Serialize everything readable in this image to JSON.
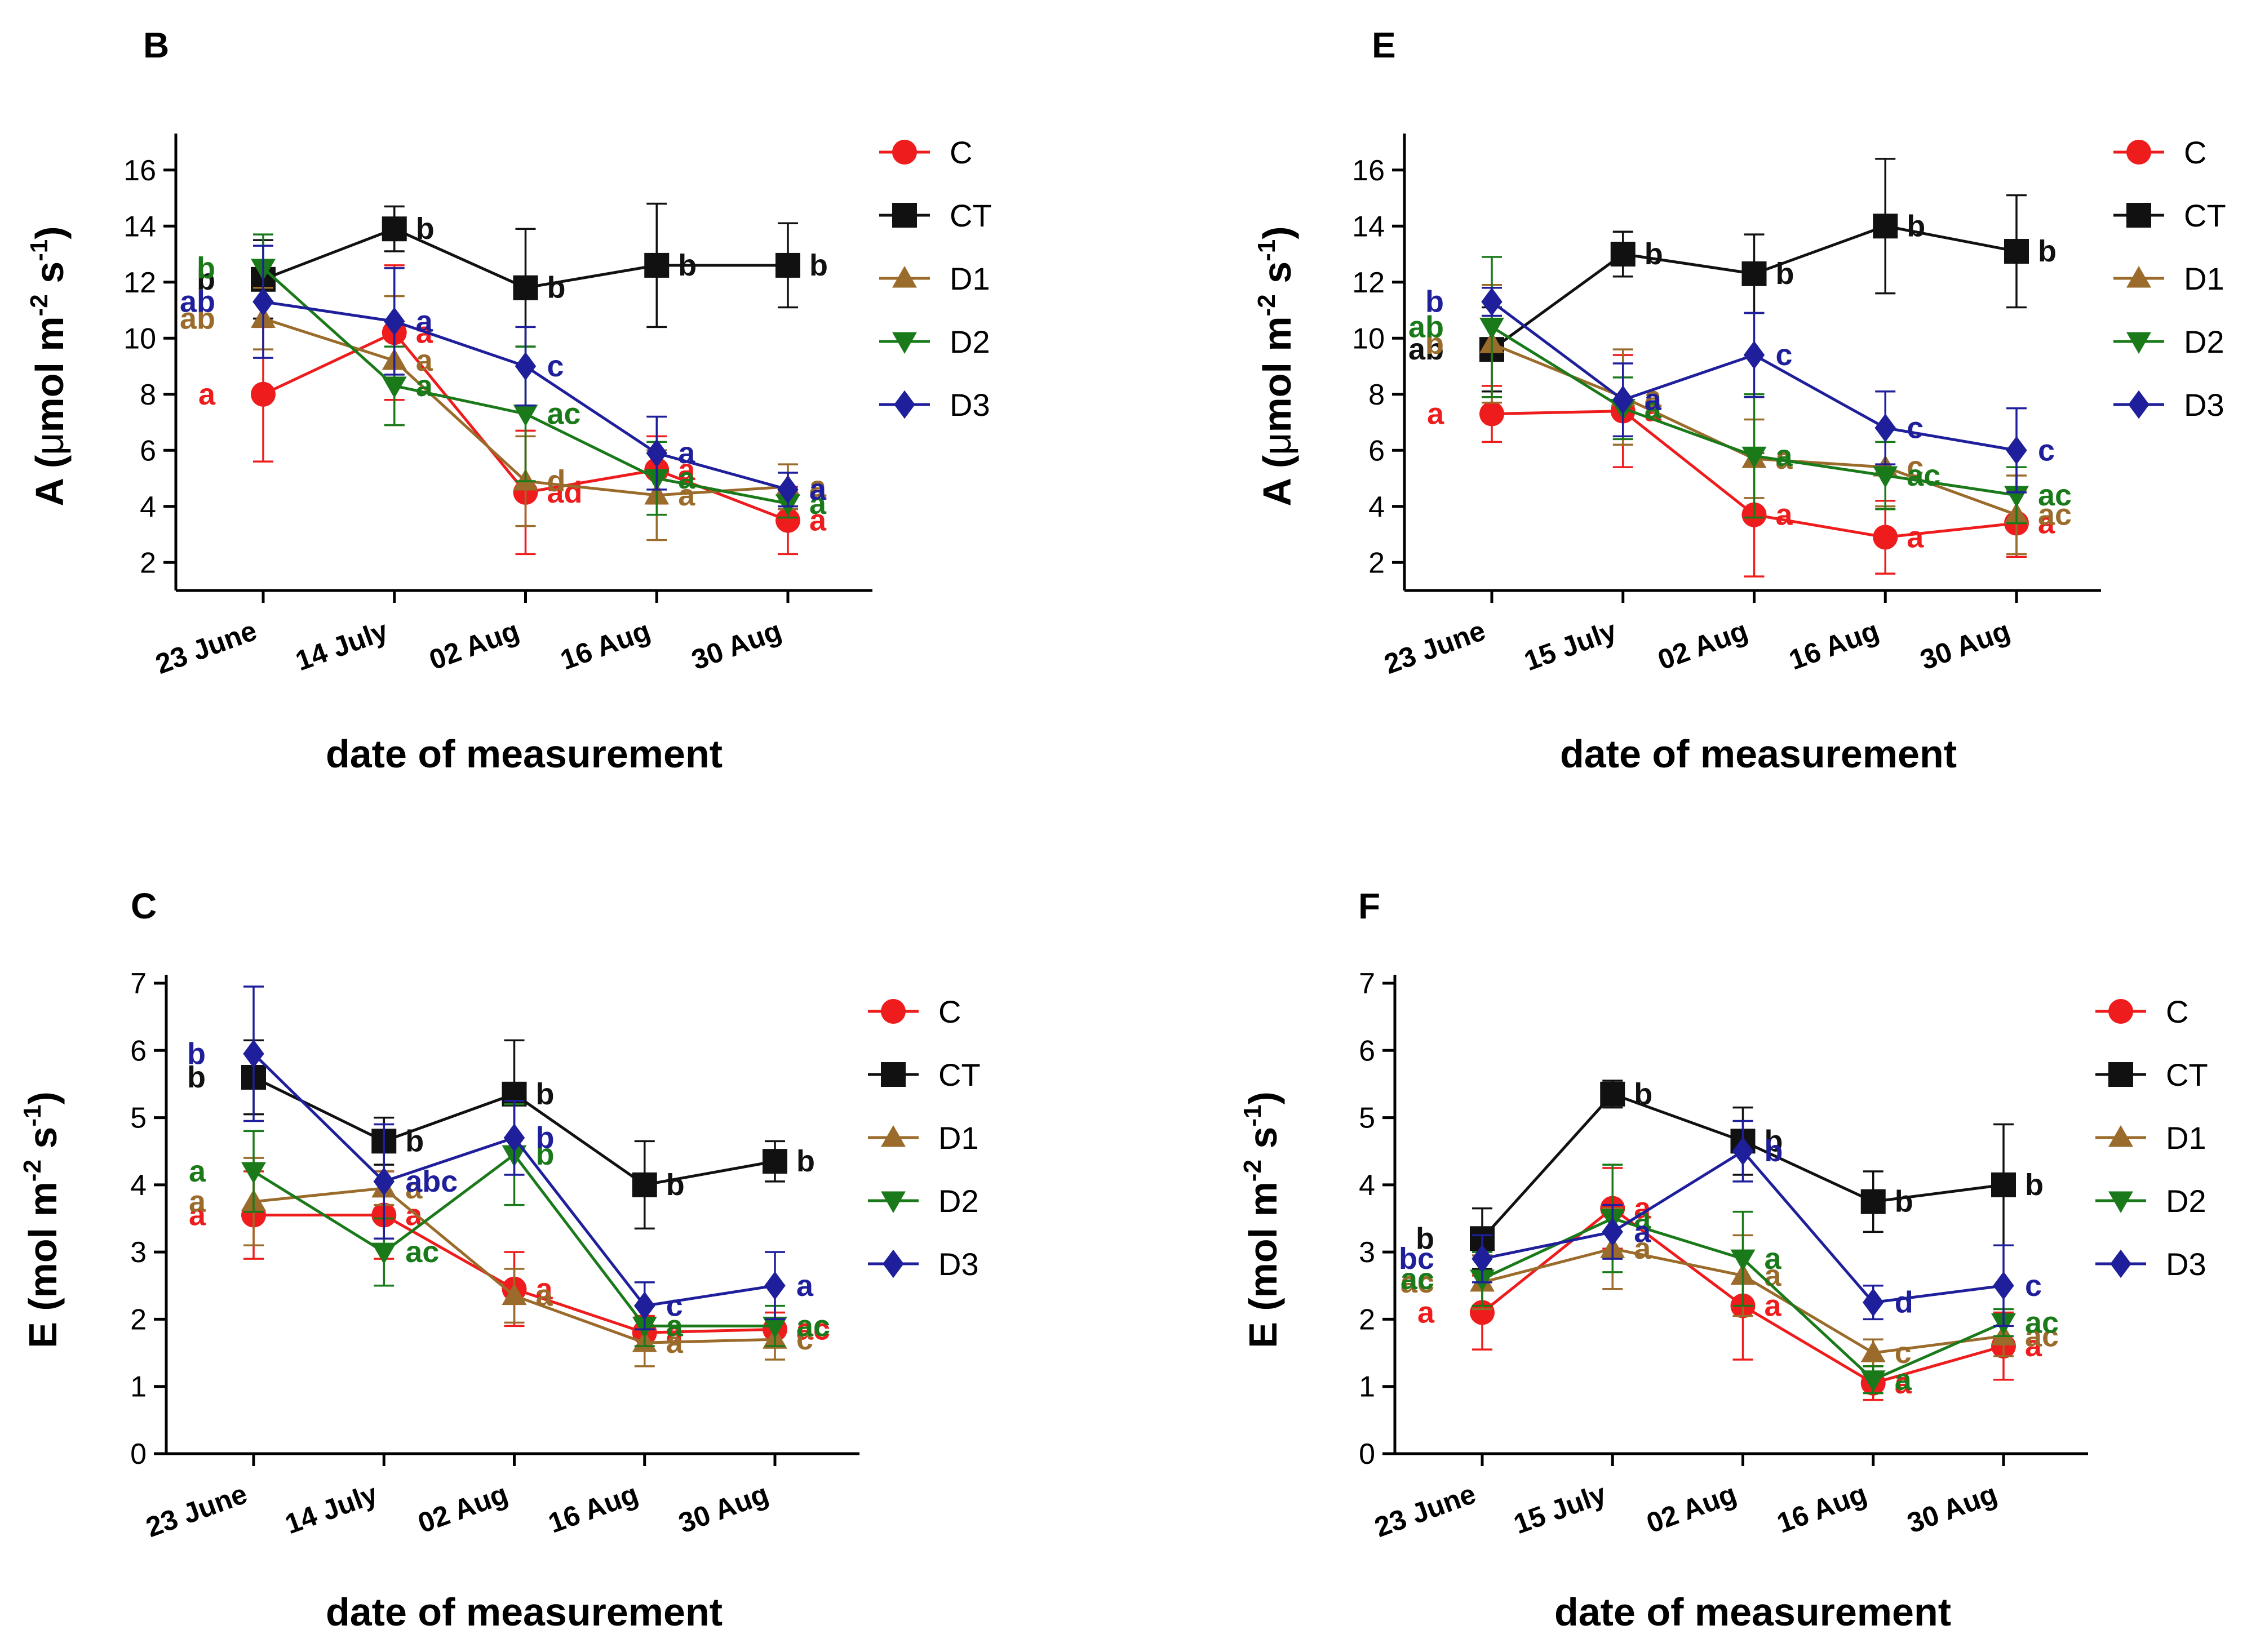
{
  "legend": [
    "C",
    "CT",
    "D1",
    "D2",
    "D3"
  ],
  "colors": {
    "C": "#ee1c1c",
    "CT": "#111111",
    "D1": "#9a6b2a",
    "D2": "#1a7a1a",
    "D3": "#1f1f9c"
  },
  "markers": {
    "C": "circle",
    "CT": "square",
    "D1": "triangle-up",
    "D2": "triangle-down",
    "D3": "diamond"
  },
  "xlabel": "date of measurement",
  "chart_data": [
    {
      "panel": "B",
      "type": "line",
      "title": "B",
      "xlabel": "date of measurement",
      "ylabel_main": "A (",
      "ylabel_mu": "μ",
      "ylabel_units": "mol m",
      "ylabel_exp1": "-2",
      "ylabel_s": " s",
      "ylabel_exp2": "-1",
      "ylabel_close": ")",
      "categories": [
        "23 June",
        "14 July",
        "02 Aug",
        "16 Aug",
        "30 Aug"
      ],
      "ylim": [
        1,
        17
      ],
      "yticks": [
        2,
        4,
        6,
        8,
        10,
        12,
        14,
        16
      ],
      "series": [
        {
          "name": "C",
          "values": [
            8.0,
            10.2,
            4.5,
            5.3,
            3.5
          ],
          "err": [
            2.4,
            2.4,
            2.2,
            1.2,
            1.2
          ],
          "labels": [
            "a",
            "a",
            "ad",
            "a",
            "a"
          ]
        },
        {
          "name": "CT",
          "values": [
            12.1,
            13.9,
            11.8,
            12.6,
            12.6
          ],
          "err": [
            1.4,
            0.8,
            2.1,
            2.2,
            1.5
          ],
          "labels": [
            "b",
            "b",
            "b",
            "b",
            "b"
          ]
        },
        {
          "name": "D1",
          "values": [
            10.7,
            9.2,
            4.9,
            4.4,
            4.7
          ],
          "err": [
            1.1,
            2.3,
            1.6,
            1.6,
            0.8
          ],
          "labels": [
            "ab",
            "a",
            "d",
            "a",
            "a"
          ]
        },
        {
          "name": "D2",
          "values": [
            12.5,
            8.3,
            7.3,
            5.0,
            4.1
          ],
          "err": [
            1.2,
            1.4,
            2.4,
            1.3,
            0.5
          ],
          "labels": [
            "b",
            "a",
            "ac",
            "a",
            "a"
          ]
        },
        {
          "name": "D3",
          "values": [
            11.3,
            10.6,
            9.0,
            5.9,
            4.6
          ],
          "err": [
            2.0,
            1.9,
            1.4,
            1.3,
            0.6
          ],
          "labels": [
            "ab",
            "a",
            "c",
            "a",
            "a"
          ]
        }
      ]
    },
    {
      "panel": "E",
      "type": "line",
      "title": "E",
      "xlabel": "date of measurement",
      "ylabel_main": "A (",
      "ylabel_mu": "μ",
      "ylabel_units": "mol m",
      "ylabel_exp1": "-2",
      "ylabel_s": " s",
      "ylabel_exp2": "-1",
      "ylabel_close": ")",
      "categories": [
        "23 June",
        "15 July",
        "02 Aug",
        "16 Aug",
        "30 Aug"
      ],
      "ylim": [
        1,
        17
      ],
      "yticks": [
        2,
        4,
        6,
        8,
        10,
        12,
        14,
        16
      ],
      "series": [
        {
          "name": "C",
          "values": [
            7.3,
            7.4,
            3.7,
            2.9,
            3.4
          ],
          "err": [
            1.0,
            2.0,
            2.2,
            1.3,
            1.2
          ],
          "labels": [
            "a",
            "a",
            "a",
            "a",
            "a"
          ]
        },
        {
          "name": "CT",
          "values": [
            9.6,
            13.0,
            12.3,
            14.0,
            13.1
          ],
          "err": [
            1.5,
            0.8,
            1.4,
            2.4,
            2.0
          ],
          "labels": [
            "ab",
            "b",
            "b",
            "b",
            "b"
          ]
        },
        {
          "name": "D1",
          "values": [
            9.8,
            7.9,
            5.7,
            5.4,
            3.7
          ],
          "err": [
            2.1,
            1.7,
            1.4,
            1.4,
            1.4
          ],
          "labels": [
            "b",
            "a",
            "a",
            "c",
            "ac"
          ]
        },
        {
          "name": "D2",
          "values": [
            10.4,
            7.5,
            5.8,
            5.1,
            4.4
          ],
          "err": [
            2.5,
            1.1,
            2.2,
            1.2,
            1.0
          ],
          "labels": [
            "ab",
            "a",
            "a",
            "ac",
            "ac"
          ]
        },
        {
          "name": "D3",
          "values": [
            11.3,
            7.8,
            9.4,
            6.8,
            6.0
          ],
          "err": [
            0.5,
            1.3,
            1.5,
            1.3,
            1.5
          ],
          "labels": [
            "b",
            "a",
            "c",
            "c",
            "c"
          ]
        }
      ]
    },
    {
      "panel": "C",
      "type": "line",
      "title": "C",
      "xlabel": "date of measurement",
      "ylabel_main": "E (",
      "ylabel_mu": "",
      "ylabel_units": "mol m",
      "ylabel_exp1": "-2",
      "ylabel_s": " s",
      "ylabel_exp2": "-1",
      "ylabel_close": ")",
      "categories": [
        "23 June",
        "14 July",
        "02 Aug",
        "16 Aug",
        "30 Aug"
      ],
      "ylim": [
        0,
        7
      ],
      "yticks": [
        0,
        1,
        2,
        3,
        4,
        5,
        6,
        7
      ],
      "series": [
        {
          "name": "C",
          "values": [
            3.55,
            3.55,
            2.45,
            1.8,
            1.85
          ],
          "err": [
            0.65,
            0.65,
            0.55,
            0.25,
            0.25
          ],
          "labels": [
            "a",
            "a",
            "a",
            "a",
            "ac"
          ]
        },
        {
          "name": "CT",
          "values": [
            5.6,
            4.65,
            5.35,
            4.0,
            4.35
          ],
          "err": [
            0.55,
            0.35,
            0.8,
            0.65,
            0.3
          ],
          "labels": [
            "b",
            "b",
            "b",
            "b",
            "b"
          ]
        },
        {
          "name": "D1",
          "values": [
            3.75,
            3.95,
            2.35,
            1.65,
            1.7
          ],
          "err": [
            0.65,
            0.25,
            0.4,
            0.35,
            0.3
          ],
          "labels": [
            "a",
            "a",
            "a",
            "a",
            "c"
          ]
        },
        {
          "name": "D2",
          "values": [
            4.2,
            3.0,
            4.45,
            1.9,
            1.9
          ],
          "err": [
            0.6,
            0.5,
            0.75,
            0.3,
            0.3
          ],
          "labels": [
            "a",
            "ac",
            "b",
            "a",
            "ac"
          ]
        },
        {
          "name": "D3",
          "values": [
            5.95,
            4.05,
            4.7,
            2.2,
            2.5
          ],
          "err": [
            1.0,
            0.85,
            0.55,
            0.35,
            0.5
          ],
          "labels": [
            "b",
            "abc",
            "b",
            "c",
            "a"
          ]
        }
      ]
    },
    {
      "panel": "F",
      "type": "line",
      "title": "F",
      "xlabel": "date of measurement",
      "ylabel_main": "E (",
      "ylabel_mu": "",
      "ylabel_units": "mol m",
      "ylabel_exp1": "-2",
      "ylabel_s": " s",
      "ylabel_exp2": "-1",
      "ylabel_close": ")",
      "categories": [
        "23 June",
        "15 July",
        "02 Aug",
        "16 Aug",
        "30 Aug"
      ],
      "ylim": [
        0,
        7
      ],
      "yticks": [
        0,
        1,
        2,
        3,
        4,
        5,
        6,
        7
      ],
      "series": [
        {
          "name": "C",
          "values": [
            2.1,
            3.65,
            2.2,
            1.05,
            1.6
          ],
          "err": [
            0.55,
            0.6,
            0.8,
            0.25,
            0.5
          ],
          "labels": [
            "a",
            "a",
            "a",
            "a",
            "a"
          ]
        },
        {
          "name": "CT",
          "values": [
            3.2,
            5.35,
            4.65,
            3.75,
            4.0
          ],
          "err": [
            0.45,
            0.2,
            0.5,
            0.45,
            0.9
          ],
          "labels": [
            "b",
            "b",
            "b",
            "b",
            "b"
          ]
        },
        {
          "name": "D1",
          "values": [
            2.55,
            3.05,
            2.65,
            1.5,
            1.75
          ],
          "err": [
            0.4,
            0.6,
            0.6,
            0.2,
            0.3
          ],
          "labels": [
            "ac",
            "a",
            "a",
            "c",
            "ac"
          ]
        },
        {
          "name": "D2",
          "values": [
            2.6,
            3.5,
            2.9,
            1.1,
            1.95
          ],
          "err": [
            0.4,
            0.8,
            0.7,
            0.2,
            0.2
          ],
          "labels": [
            "ac",
            "a",
            "a",
            "a",
            "ac"
          ]
        },
        {
          "name": "D3",
          "values": [
            2.9,
            3.3,
            4.5,
            2.25,
            2.5
          ],
          "err": [
            0.35,
            0.4,
            0.45,
            0.25,
            0.6
          ],
          "labels": [
            "bc",
            "a",
            "b",
            "d",
            "c"
          ]
        }
      ]
    }
  ]
}
